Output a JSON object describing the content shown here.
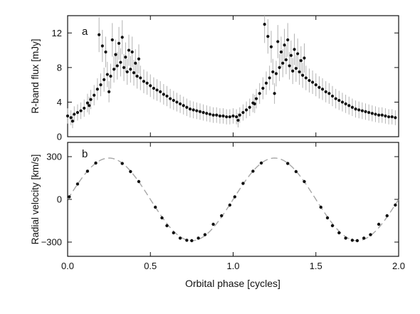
{
  "chart_data": [
    {
      "panel_label": "a",
      "type": "scatter",
      "xlabel": "",
      "ylabel": "R-band flux [mJy]",
      "xlim": [
        0,
        2
      ],
      "ylim": [
        0,
        14
      ],
      "yticks": [
        0,
        4,
        8,
        12
      ],
      "xticks": [
        0.0,
        0.5,
        1.0,
        1.5,
        2.0
      ],
      "tick_labels_x_shown": false,
      "error_bar_color": "#b3b3b3",
      "marker_color": "#111111",
      "series": [
        {
          "x": [
            0.0,
            0.02,
            0.04,
            0.06,
            0.08,
            0.1,
            0.12,
            0.14,
            0.16,
            0.18,
            0.2,
            0.22,
            0.24,
            0.26,
            0.28,
            0.3,
            0.32,
            0.34,
            0.36,
            0.38,
            0.4,
            0.42,
            0.44,
            0.46,
            0.48,
            0.5,
            0.52,
            0.54,
            0.56,
            0.58,
            0.6,
            0.62,
            0.64,
            0.66,
            0.68,
            0.7,
            0.72,
            0.74,
            0.76,
            0.78,
            0.8,
            0.82,
            0.84,
            0.86,
            0.88,
            0.9,
            0.92,
            0.94,
            0.96,
            0.98,
            1.0,
            1.02,
            1.04,
            1.06,
            1.08,
            1.1,
            1.12,
            1.14,
            1.16,
            1.18,
            1.2,
            1.22,
            1.24,
            1.26,
            1.28,
            1.3,
            1.32,
            1.34,
            1.36,
            1.38,
            1.4,
            1.42,
            1.44,
            1.46,
            1.48,
            1.5,
            1.52,
            1.54,
            1.56,
            1.58,
            1.6,
            1.62,
            1.64,
            1.66,
            1.68,
            1.7,
            1.72,
            1.74,
            1.76,
            1.78,
            1.8,
            1.82,
            1.84,
            1.86,
            1.88,
            1.9,
            1.92,
            1.94,
            1.96,
            1.98,
            0.19,
            0.21,
            0.23,
            0.27,
            0.29,
            0.31,
            0.33,
            0.35,
            0.37,
            0.39,
            0.41,
            0.43,
            1.19,
            1.21,
            1.23,
            1.27,
            1.29,
            1.31,
            1.33,
            1.35,
            1.37,
            1.39,
            1.41,
            1.43,
            0.25,
            1.25,
            0.03,
            1.03,
            0.13,
            1.13
          ],
          "y": [
            2.4,
            2.2,
            2.6,
            2.8,
            3.0,
            3.3,
            3.9,
            4.3,
            4.8,
            5.5,
            6.0,
            6.6,
            7.2,
            7.0,
            7.8,
            8.2,
            8.6,
            8.0,
            7.5,
            7.8,
            7.4,
            7.0,
            6.8,
            6.4,
            6.2,
            5.9,
            5.6,
            5.4,
            5.2,
            4.9,
            4.7,
            4.4,
            4.2,
            4.0,
            3.8,
            3.6,
            3.4,
            3.2,
            3.1,
            3.0,
            2.9,
            2.8,
            2.7,
            2.6,
            2.5,
            2.5,
            2.4,
            2.4,
            2.3,
            2.3,
            2.4,
            2.3,
            2.5,
            2.8,
            3.1,
            3.4,
            3.9,
            4.4,
            5.0,
            5.6,
            6.2,
            6.8,
            7.5,
            7.3,
            8.0,
            8.5,
            8.9,
            8.2,
            7.6,
            7.9,
            7.5,
            7.1,
            6.8,
            6.5,
            6.3,
            6.0,
            5.7,
            5.5,
            5.2,
            5.0,
            4.7,
            4.4,
            4.2,
            4.0,
            3.8,
            3.6,
            3.4,
            3.2,
            3.1,
            3.0,
            2.9,
            2.8,
            2.7,
            2.6,
            2.5,
            2.5,
            2.4,
            2.3,
            2.3,
            2.2,
            11.8,
            10.5,
            9.8,
            11.2,
            9.5,
            10.8,
            11.5,
            9.2,
            10.0,
            9.8,
            8.5,
            9.0,
            13.0,
            11.6,
            10.4,
            11.0,
            9.8,
            10.6,
            11.2,
            9.4,
            10.1,
            9.6,
            8.8,
            9.1,
            5.2,
            5.0,
            1.8,
            1.9,
            3.6,
            3.8
          ]
        }
      ]
    },
    {
      "panel_label": "b",
      "type": "scatter",
      "xlabel": "Orbital phase [cycles]",
      "ylabel": "Radial velocity [km/s]",
      "xlim": [
        0,
        2
      ],
      "ylim": [
        -400,
        400
      ],
      "yticks": [
        -300,
        0,
        300
      ],
      "xticks": [
        0.0,
        0.5,
        1.0,
        1.5,
        2.0
      ],
      "x_tick_labels": [
        "0.0",
        "0.5",
        "1.0",
        "1.5",
        "2.0"
      ],
      "y_tick_labels": [
        "−300",
        "0",
        "300"
      ],
      "model_line_color": "#a6a6a6",
      "model_amplitude": 290,
      "marker_color": "#111111",
      "series": [
        {
          "x": [
            0.01,
            0.06,
            0.12,
            0.17,
            0.33,
            0.38,
            0.43,
            0.53,
            0.57,
            0.6,
            0.64,
            0.68,
            0.72,
            0.75,
            0.79,
            0.83,
            0.88,
            0.93,
            0.98,
            1.01,
            1.06,
            1.12,
            1.17,
            1.33,
            1.38,
            1.43,
            1.53,
            1.57,
            1.6,
            1.64,
            1.68,
            1.72,
            1.75,
            1.79,
            1.83,
            1.88,
            1.93,
            1.98
          ],
          "y": [
            18,
            108,
            198,
            255,
            252,
            195,
            125,
            -55,
            -130,
            -185,
            -235,
            -272,
            -287,
            -290,
            -272,
            -248,
            -175,
            -115,
            -40,
            18,
            112,
            198,
            255,
            252,
            195,
            125,
            -55,
            -130,
            -185,
            -235,
            -272,
            -287,
            -290,
            -272,
            -248,
            -175,
            -115,
            -40
          ]
        }
      ]
    }
  ]
}
